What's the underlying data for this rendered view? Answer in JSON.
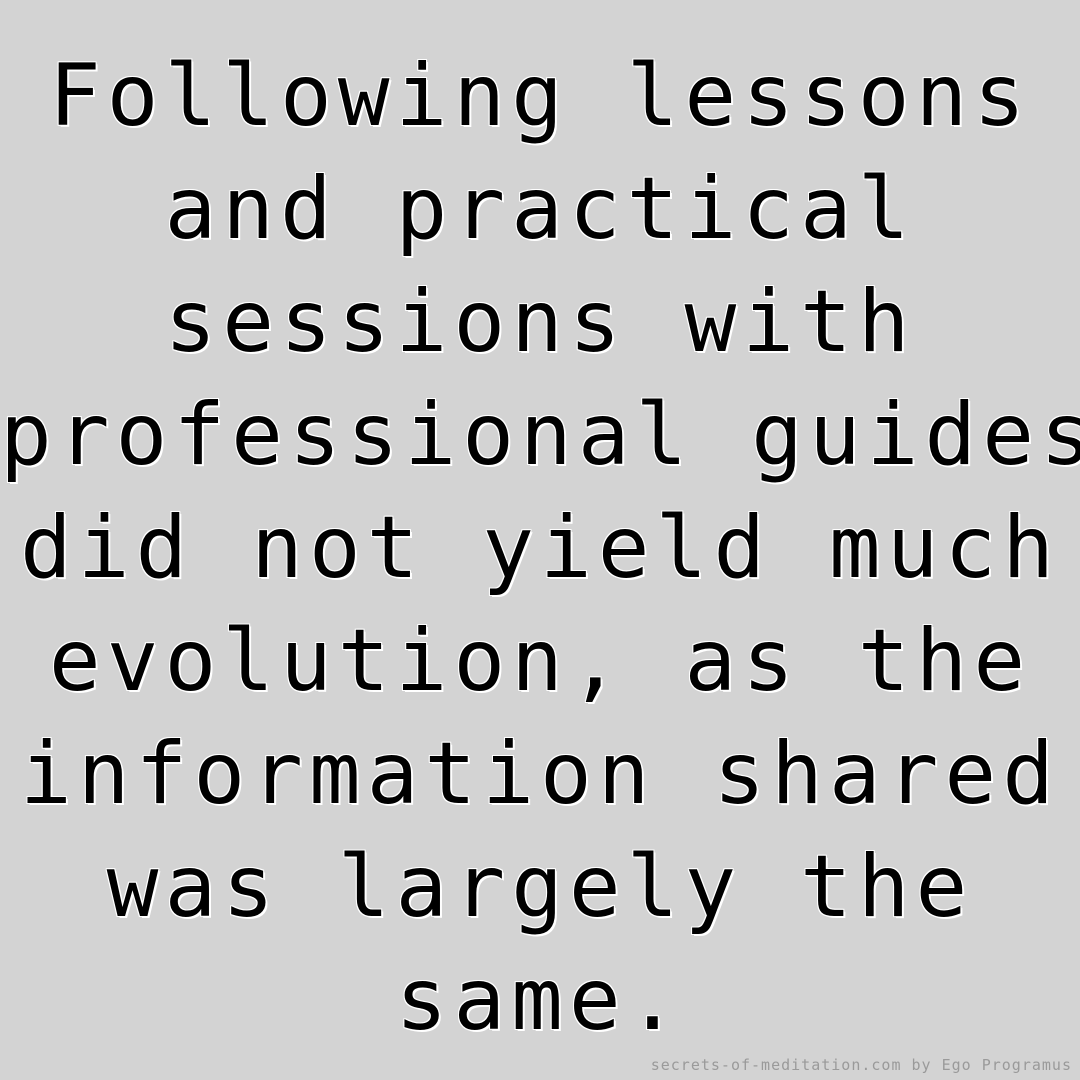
{
  "quote": {
    "lines": [
      "Following lessons",
      "and practical",
      "sessions with",
      "professional guides",
      "did not yield much",
      "evolution, as the",
      "information shared",
      "was largely the",
      "same."
    ]
  },
  "credit": {
    "text": "secrets-of-meditation.com by Ego Programus"
  },
  "colors": {
    "background": "#d3d3d3",
    "text": "#000000",
    "text_outline": "#ffffff",
    "credit": "#9a9a9a"
  }
}
